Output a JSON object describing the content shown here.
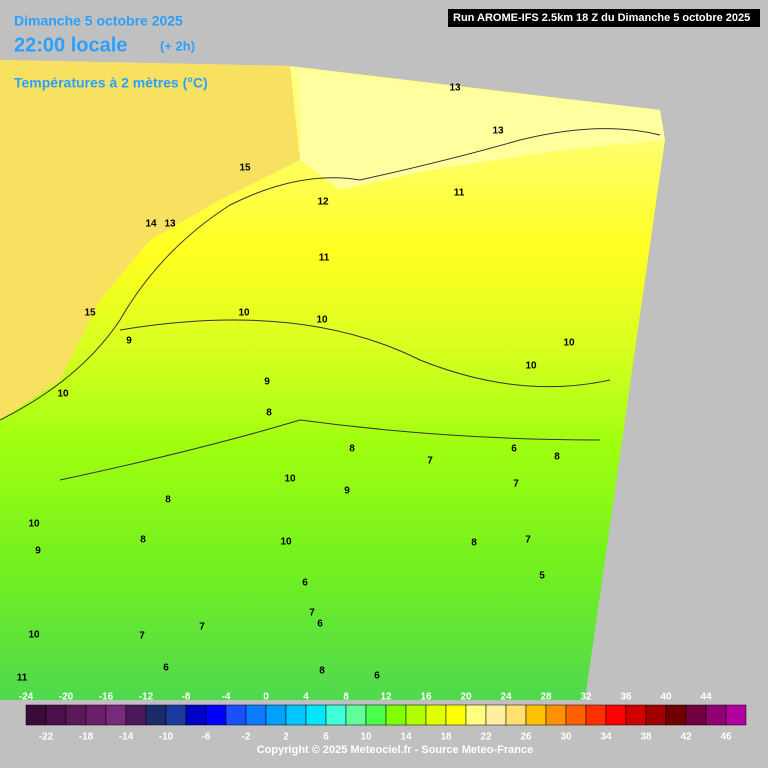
{
  "header": {
    "date": "Dimanche 5 octobre 2025",
    "time": "22:00 locale",
    "offset": "(+ 2h)",
    "field": "Températures à 2 mètres (°C)",
    "run": "Run AROME-IFS 2.5km 18 Z du Dimanche 5 octobre 2025"
  },
  "map": {
    "labels": [
      13,
      13,
      15,
      12,
      11,
      14,
      13,
      11,
      15,
      10,
      10,
      9,
      10,
      10,
      9,
      10,
      8,
      8,
      8,
      7,
      6,
      10,
      9,
      7,
      8,
      10,
      9,
      8,
      10,
      7,
      8,
      5,
      6,
      7,
      6,
      10,
      7,
      7,
      6,
      6,
      8,
      11
    ]
  },
  "scale": {
    "top_labels": [
      -24,
      -20,
      -16,
      -12,
      -8,
      -4,
      0,
      4,
      8,
      12,
      16,
      20,
      24,
      28,
      32,
      36,
      40,
      44
    ],
    "bottom_labels": [
      -22,
      -18,
      -14,
      -10,
      -6,
      -2,
      2,
      6,
      10,
      14,
      18,
      22,
      26,
      30,
      34,
      38,
      42,
      46
    ]
  },
  "footer": {
    "copyright": "Copyright © 2025 Meteociel.fr - Source Meteo-France"
  }
}
